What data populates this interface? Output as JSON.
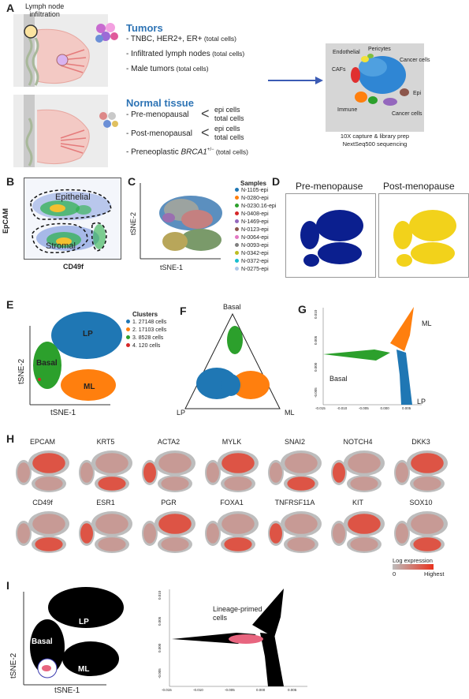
{
  "panelA": {
    "letter": "A",
    "lymph_label_1": "Lymph node",
    "lymph_label_2": "infiltration",
    "tumors_title": "Tumors",
    "tumors_items": [
      {
        "main": "- TNBC, HER2+, ER+",
        "tot": " (total cells)"
      },
      {
        "main": "- Infiltrated lymph nodes",
        "tot": " (total cells)"
      },
      {
        "main": "- Male tumors",
        "tot": " (total cells)"
      }
    ],
    "normal_title": "Normal tissue",
    "pre_label": "- Pre-menopausal",
    "post_label": "- Post-menopausal",
    "epi_cells": "epi cells",
    "total_cells": "total cells",
    "preneo_label": "- Preneoplastic ",
    "preneo_gene": "BRCA1",
    "preneo_sup": "+/−",
    "preneo_tot": " (total cells)",
    "tsne_labels": {
      "endothelial": "Endothelial",
      "pericytes": "Pericytes",
      "cafs": "CAFs",
      "cancer1": "Cancer cells",
      "epi": "Epi",
      "immune": "Immune",
      "cancer2": "Cancer cells"
    },
    "capture_line1": "10X capture & library prep",
    "capture_line2": "NextSeq500 sequencing"
  },
  "panelB": {
    "letter": "B",
    "epithelial": "Epithelial",
    "stromal": "Stromal",
    "ylabel": "EpCAM",
    "xlabel": "CD49f"
  },
  "panelC": {
    "letter": "C",
    "xlabel": "tSNE-1",
    "ylabel": "tSNE-2",
    "legend_title": "Samples",
    "samples": [
      {
        "name": "N-1105-epi",
        "color": "#1f77b4"
      },
      {
        "name": "N-0280-epi",
        "color": "#ff7f0e"
      },
      {
        "name": "N-0230.16-epi",
        "color": "#2ca02c"
      },
      {
        "name": "N-0408-epi",
        "color": "#d62728"
      },
      {
        "name": "N-1469-epi",
        "color": "#9467bd"
      },
      {
        "name": "N-0123-epi",
        "color": "#8c564b"
      },
      {
        "name": "N-0064-epi",
        "color": "#e377c2"
      },
      {
        "name": "N-0093-epi",
        "color": "#7f7f7f"
      },
      {
        "name": "N-0342-epi",
        "color": "#bcbd22"
      },
      {
        "name": "N-0372-epi",
        "color": "#17becf"
      },
      {
        "name": "N-0275-epi",
        "color": "#aec7e8"
      }
    ]
  },
  "panelD": {
    "letter": "D",
    "pre_title": "Pre-menopause",
    "post_title": "Post-menopause",
    "pre_color": "#0b1f8f",
    "post_color": "#f2d21b"
  },
  "panelE": {
    "letter": "E",
    "xlabel": "tSNE-1",
    "ylabel": "tSNE-2",
    "legend_title": "Clusters",
    "clusters": [
      {
        "label": "1. 27148 cells",
        "color": "#1f77b4"
      },
      {
        "label": "2. 17103 cells",
        "color": "#ff7f0e"
      },
      {
        "label": "3. 8528 cells",
        "color": "#2ca02c"
      },
      {
        "label": "4. 120 cells",
        "color": "#d62728"
      }
    ],
    "lp": "LP",
    "basal": "Basal",
    "ml": "ML"
  },
  "panelF": {
    "letter": "F",
    "basal": "Basal",
    "lp": "LP",
    "ml": "ML"
  },
  "panelG": {
    "letter": "G",
    "ml": "ML",
    "basal": "Basal",
    "lp": "LP",
    "xticks": [
      "-0.015",
      "-0.010",
      "-0.005",
      "0.000",
      "0.005"
    ],
    "yticks": [
      "0.010",
      "0.005",
      "0.000",
      "-0.005"
    ]
  },
  "panelH": {
    "letter": "H",
    "row1": [
      "EPCAM",
      "KRT5",
      "ACTA2",
      "MYLK",
      "SNAI2",
      "NOTCH4",
      "DKK3"
    ],
    "row2": [
      "CD49f",
      "ESR1",
      "PGR",
      "FOXA1",
      "TNFRSF11A",
      "KIT",
      "SOX10"
    ],
    "legend_title": "Log expression",
    "legend_low": "0",
    "legend_high": "Highest",
    "low_color": "#bdbdbd",
    "high_color": "#e8321e"
  },
  "panelI": {
    "letter": "I",
    "lp": "LP",
    "basal": "Basal",
    "ml": "ML",
    "xlabel": "tSNE-1",
    "ylabel": "tSNE-2",
    "annotation_1": "Lineage-primed",
    "annotation_2": "cells",
    "xticks": [
      "-0.015",
      "-0.010",
      "-0.005",
      "0.000",
      "0.005"
    ],
    "yticks": [
      "0.010",
      "0.005",
      "0.000",
      "-0.005"
    ],
    "highlight_color": "#e8657f"
  }
}
